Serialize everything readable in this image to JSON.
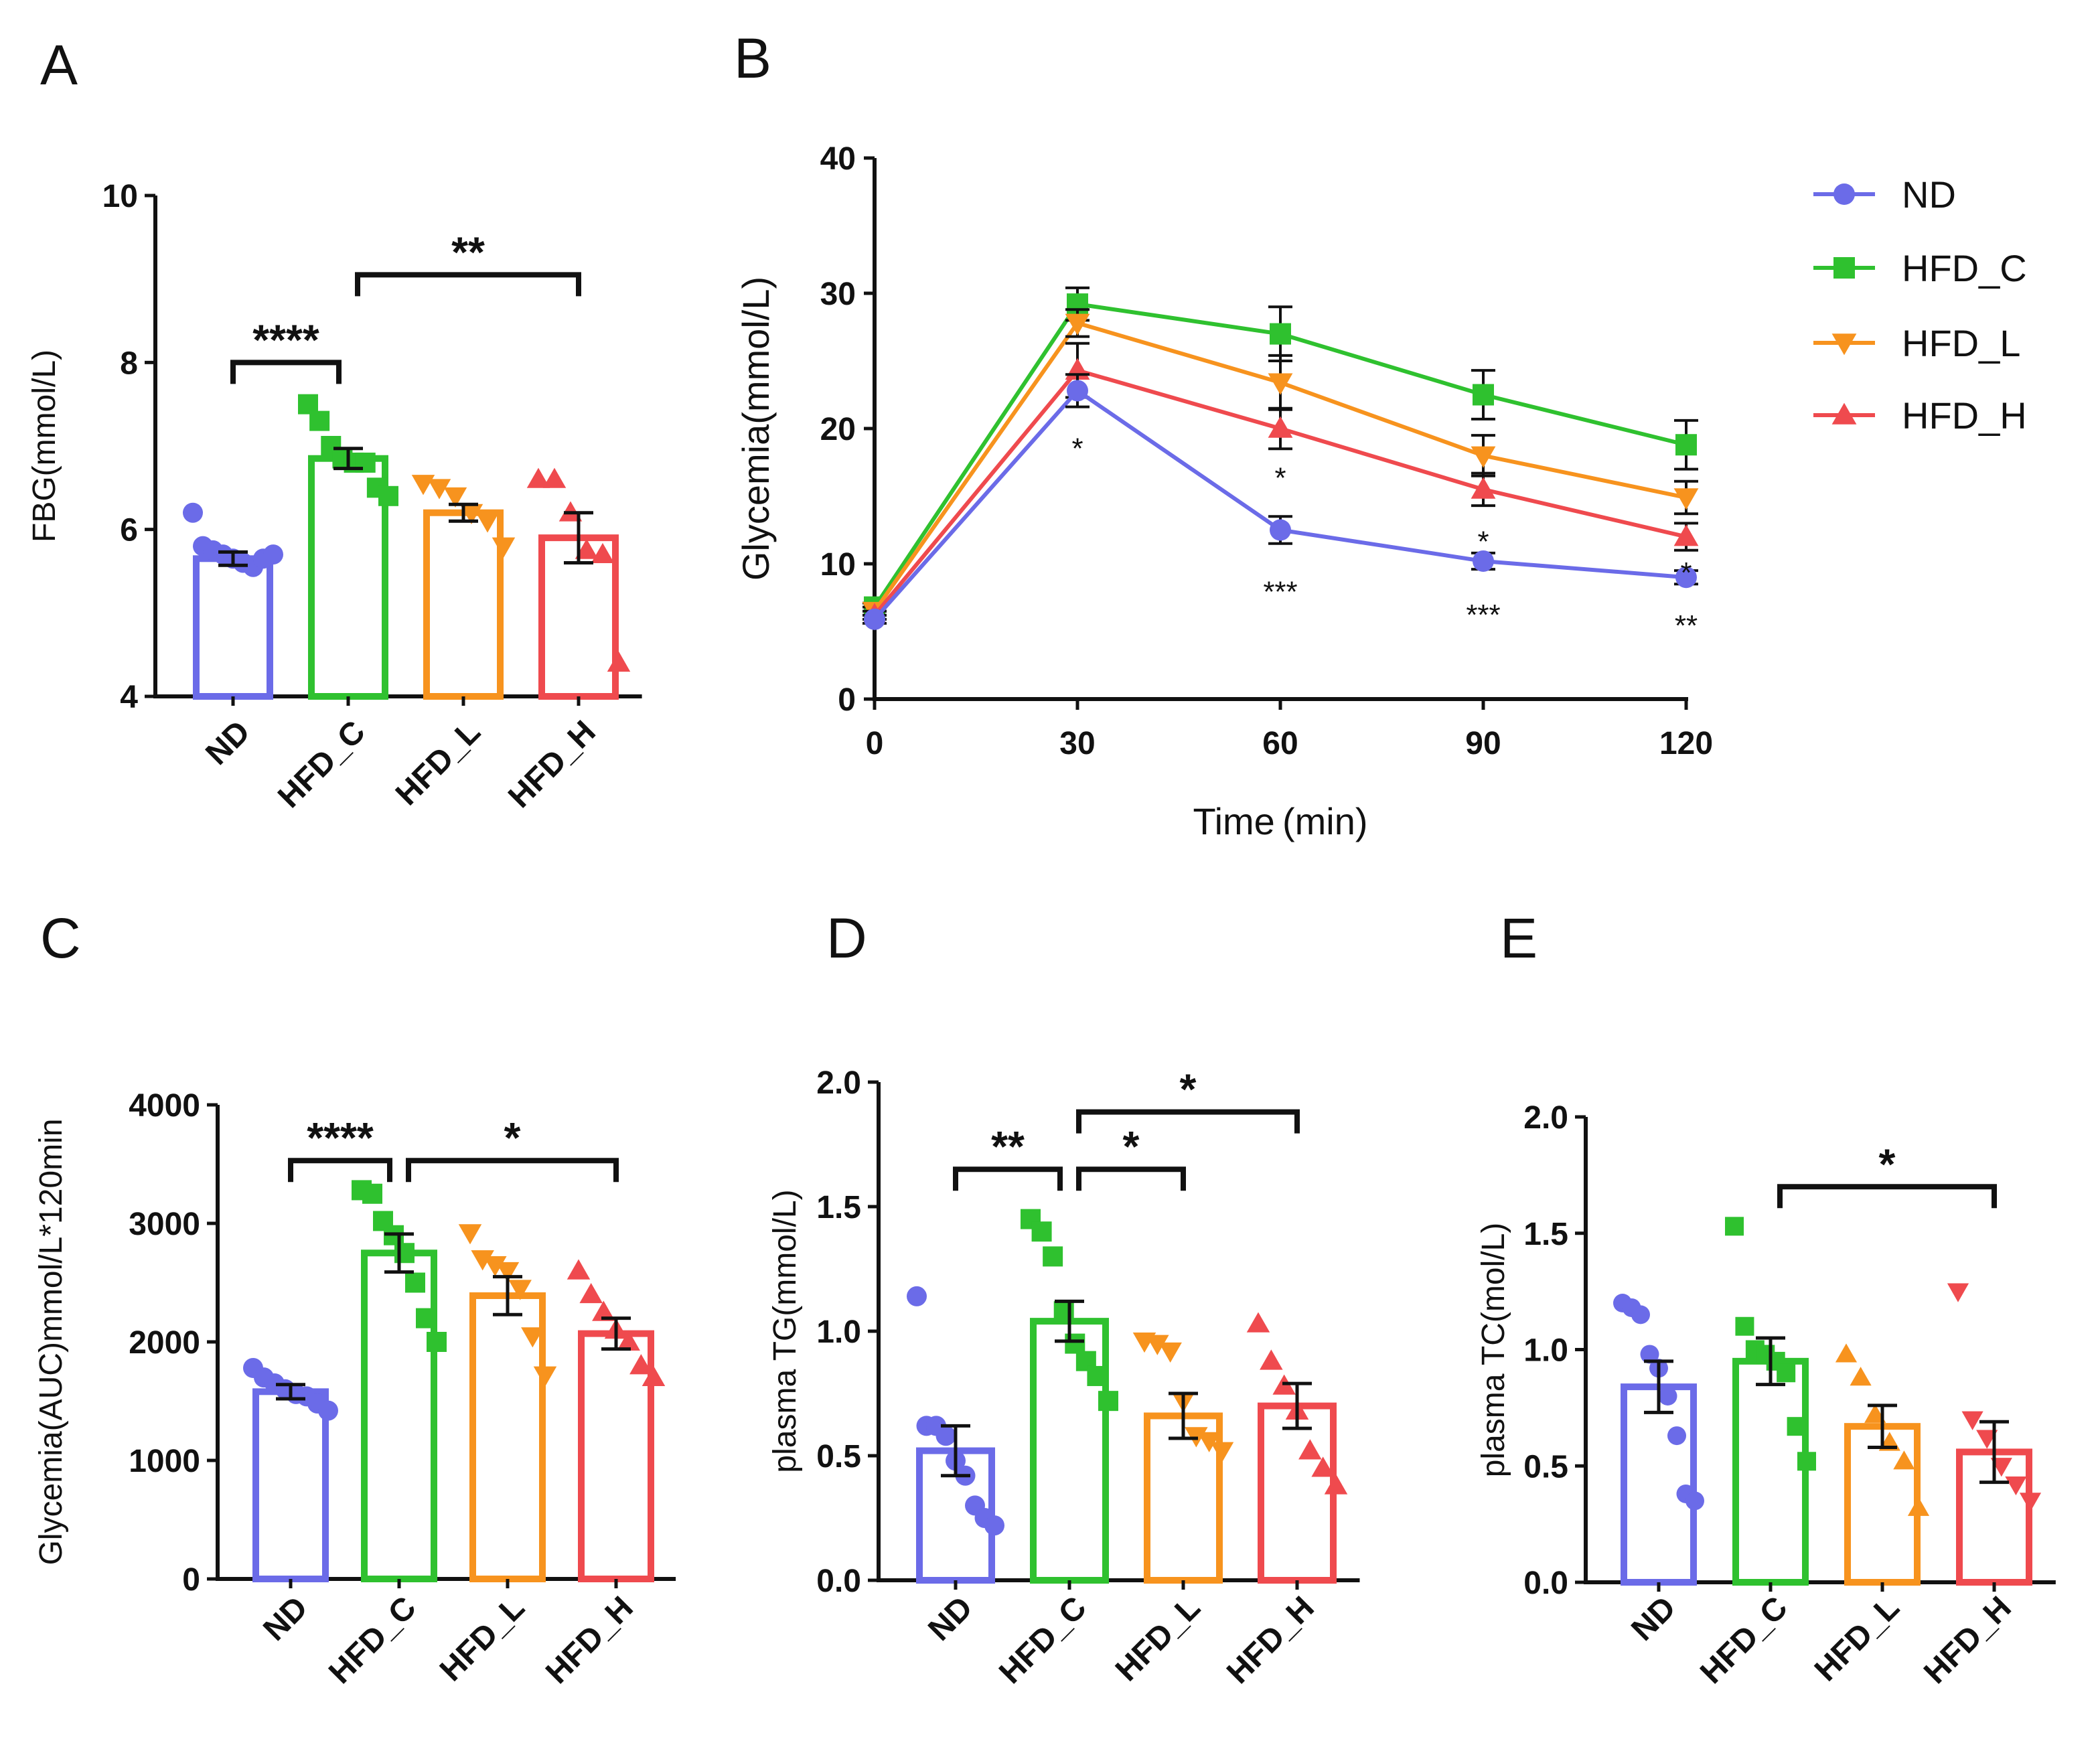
{
  "colors": {
    "ND": "#6b6be8",
    "HFD_C": "#2fc12f",
    "HFD_L": "#f7931e",
    "HFD_H": "#ef4a4e",
    "axis": "#111111"
  },
  "chart_data": [
    {
      "id": "A",
      "panel": "A",
      "type": "bar",
      "ylabel": "FBG(mmol/L)",
      "ylim": [
        4,
        10
      ],
      "yticks": [
        "4",
        "6",
        "8",
        "10"
      ],
      "categories": [
        "ND",
        "HFD_C",
        "HFD_L",
        "HFD_H"
      ],
      "markers": [
        "circle",
        "square",
        "triangle-down",
        "triangle-up"
      ],
      "means": [
        5.65,
        6.85,
        6.2,
        5.9
      ],
      "sem": [
        0.08,
        0.12,
        0.1,
        0.3
      ],
      "points": [
        [
          6.2,
          5.8,
          5.75,
          5.7,
          5.65,
          5.6,
          5.55,
          5.65,
          5.7
        ],
        [
          7.5,
          7.3,
          7.0,
          6.85,
          6.8,
          6.8,
          6.5,
          6.4
        ],
        [
          6.55,
          6.5,
          6.4,
          6.2,
          6.1,
          5.8
        ],
        [
          6.6,
          6.6,
          6.2,
          5.75,
          5.7,
          4.4
        ]
      ],
      "comparisons": [
        {
          "from": 0,
          "to": 1,
          "y": 8.0,
          "label": "****"
        },
        {
          "from": 1,
          "to": 3,
          "y": 9.05,
          "label": "**"
        }
      ]
    },
    {
      "id": "B",
      "panel": "B",
      "type": "line",
      "xlabel": "Time (min)",
      "ylabel": "Glycemia(mmol/L)",
      "x": [
        0,
        30,
        60,
        90,
        120
      ],
      "xticks": [
        "0",
        "30",
        "60",
        "90",
        "120"
      ],
      "ylim": [
        0,
        40
      ],
      "yticks": [
        "0",
        "10",
        "20",
        "30",
        "40"
      ],
      "series": [
        {
          "name": "ND",
          "marker": "circle",
          "values": [
            5.9,
            22.8,
            12.5,
            10.2,
            9.0
          ],
          "sem": [
            0.3,
            1.2,
            1.0,
            0.6,
            0.5
          ]
        },
        {
          "name": "HFD_C",
          "marker": "square",
          "values": [
            6.8,
            29.2,
            27.0,
            22.5,
            18.8
          ],
          "sem": [
            0.3,
            1.2,
            2.0,
            1.8,
            1.8
          ]
        },
        {
          "name": "HFD_L",
          "marker": "triangle-down",
          "values": [
            6.5,
            27.8,
            23.4,
            18.0,
            14.9
          ],
          "sem": [
            0.3,
            1.0,
            2.0,
            1.5,
            1.2
          ]
        },
        {
          "name": "HFD_H",
          "marker": "triangle-up",
          "values": [
            6.2,
            24.3,
            20.0,
            15.5,
            12.0
          ],
          "sem": [
            0.3,
            2.0,
            1.5,
            1.2,
            1.0
          ]
        }
      ],
      "annotations": [
        {
          "x": 30,
          "y": 18.5,
          "label": "*"
        },
        {
          "x": 60,
          "y": 16.3,
          "label": "*"
        },
        {
          "x": 60,
          "y": 7.9,
          "label": "***"
        },
        {
          "x": 90,
          "y": 11.6,
          "label": "*"
        },
        {
          "x": 90,
          "y": 6.2,
          "label": "***"
        },
        {
          "x": 120,
          "y": 9.3,
          "label": "*"
        },
        {
          "x": 120,
          "y": 5.4,
          "label": "**"
        }
      ],
      "legend": [
        "ND",
        "HFD_C",
        "HFD_L",
        "HFD_H"
      ]
    },
    {
      "id": "C",
      "panel": "C",
      "type": "bar",
      "ylabel": "Glycemia(AUC)mmol/L*120min",
      "ylim": [
        0,
        4000
      ],
      "yticks": [
        "0",
        "1000",
        "2000",
        "3000",
        "4000"
      ],
      "categories": [
        "ND",
        "HFD_C",
        "HFD_L",
        "HFD_H"
      ],
      "markers": [
        "circle",
        "square",
        "triangle-down",
        "triangle-up"
      ],
      "means": [
        1580,
        2750,
        2390,
        2070
      ],
      "sem": [
        60,
        160,
        160,
        130
      ],
      "points": [
        [
          1780,
          1700,
          1650,
          1600,
          1560,
          1540,
          1480,
          1420
        ],
        [
          3280,
          3250,
          3020,
          2900,
          2750,
          2500,
          2200,
          2000
        ],
        [
          2920,
          2700,
          2650,
          2600,
          2450,
          2050,
          1720
        ],
        [
          2600,
          2400,
          2250,
          2100,
          2000,
          1800,
          1700
        ]
      ],
      "comparisons": [
        {
          "from": 0,
          "to": 1,
          "y": 3530,
          "label": "****"
        },
        {
          "from": 1,
          "to": 3,
          "y": 3530,
          "label": "*"
        }
      ]
    },
    {
      "id": "D",
      "panel": "D",
      "type": "bar",
      "ylabel": "plasma TG(mmol/L)",
      "ylim": [
        0,
        2.0
      ],
      "yticks": [
        "0.0",
        "0.5",
        "1.0",
        "1.5",
        "2.0"
      ],
      "categories": [
        "ND",
        "HFD_C",
        "HFD_L",
        "HFD_H"
      ],
      "markers": [
        "circle",
        "square",
        "triangle-down",
        "triangle-up"
      ],
      "means": [
        0.52,
        1.04,
        0.66,
        0.7
      ],
      "sem": [
        0.1,
        0.08,
        0.09,
        0.09
      ],
      "points": [
        [
          1.14,
          0.62,
          0.62,
          0.58,
          0.48,
          0.42,
          0.3,
          0.25,
          0.22
        ],
        [
          1.45,
          1.4,
          1.3,
          1.08,
          0.95,
          0.88,
          0.82,
          0.72
        ],
        [
          0.96,
          0.95,
          0.92,
          0.72,
          0.58,
          0.56,
          0.52
        ],
        [
          1.03,
          0.88,
          0.78,
          0.68,
          0.52,
          0.45,
          0.38
        ]
      ],
      "comparisons": [
        {
          "from": 0,
          "to": 1,
          "y": 1.65,
          "label": "**"
        },
        {
          "from": 1,
          "to": 2,
          "y": 1.65,
          "label": "*"
        },
        {
          "from": 1,
          "to": 3,
          "y": 1.88,
          "label": "*"
        }
      ]
    },
    {
      "id": "E",
      "panel": "E",
      "type": "bar",
      "ylabel": "plasma TC(mol/L)",
      "ylim": [
        0,
        2.0
      ],
      "yticks": [
        "0.0",
        "0.5",
        "1.0",
        "1.5",
        "2.0"
      ],
      "categories": [
        "ND",
        "HFD_C",
        "HFD_L",
        "HFD_H"
      ],
      "markers": [
        "circle",
        "square",
        "triangle-up",
        "triangle-down"
      ],
      "means": [
        0.84,
        0.95,
        0.67,
        0.56
      ],
      "sem": [
        0.11,
        0.1,
        0.09,
        0.13
      ],
      "points": [
        [
          1.2,
          1.18,
          1.15,
          0.98,
          0.92,
          0.8,
          0.63,
          0.38,
          0.35
        ],
        [
          1.53,
          1.1,
          1.0,
          0.98,
          0.95,
          0.9,
          0.67,
          0.52
        ],
        [
          0.98,
          0.88,
          0.72,
          0.6,
          0.52,
          0.32
        ],
        [
          1.25,
          0.7,
          0.62,
          0.5,
          0.42,
          0.35
        ]
      ],
      "comparisons": [
        {
          "from": 1,
          "to": 3,
          "y": 1.7,
          "label": "*"
        }
      ]
    }
  ]
}
